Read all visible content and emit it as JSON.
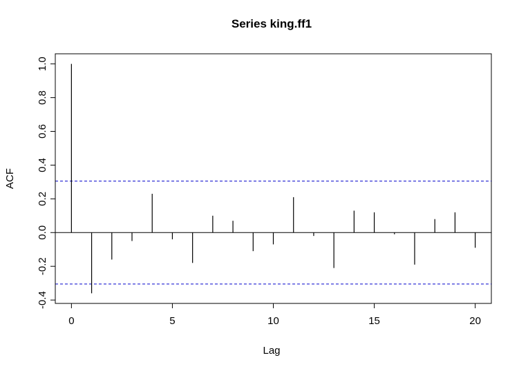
{
  "chart_data": {
    "type": "bar",
    "title": "Series  king.ff1",
    "xlabel": "Lag",
    "ylabel": "ACF",
    "x": [
      0,
      1,
      2,
      3,
      4,
      5,
      6,
      7,
      8,
      9,
      10,
      11,
      12,
      13,
      14,
      15,
      16,
      17,
      18,
      19,
      20
    ],
    "values": [
      1.0,
      -0.36,
      -0.16,
      -0.05,
      0.23,
      -0.04,
      -0.18,
      0.1,
      0.07,
      -0.11,
      -0.07,
      0.21,
      -0.02,
      -0.21,
      0.13,
      0.12,
      -0.01,
      -0.19,
      0.08,
      0.12,
      -0.09
    ],
    "confidence_bound": 0.305,
    "xlim": [
      -0.8,
      20.8
    ],
    "ylim": [
      -0.42,
      1.06
    ],
    "xticks": [
      "0",
      "5",
      "10",
      "15",
      "20"
    ],
    "yticks": [
      "-0.4",
      "-0.2",
      "0.0",
      "0.2",
      "0.4",
      "0.6",
      "0.8",
      "1.0"
    ],
    "colors": {
      "bars": "#000000",
      "confidence": "#0000cc",
      "zero_line": "#000000"
    }
  }
}
